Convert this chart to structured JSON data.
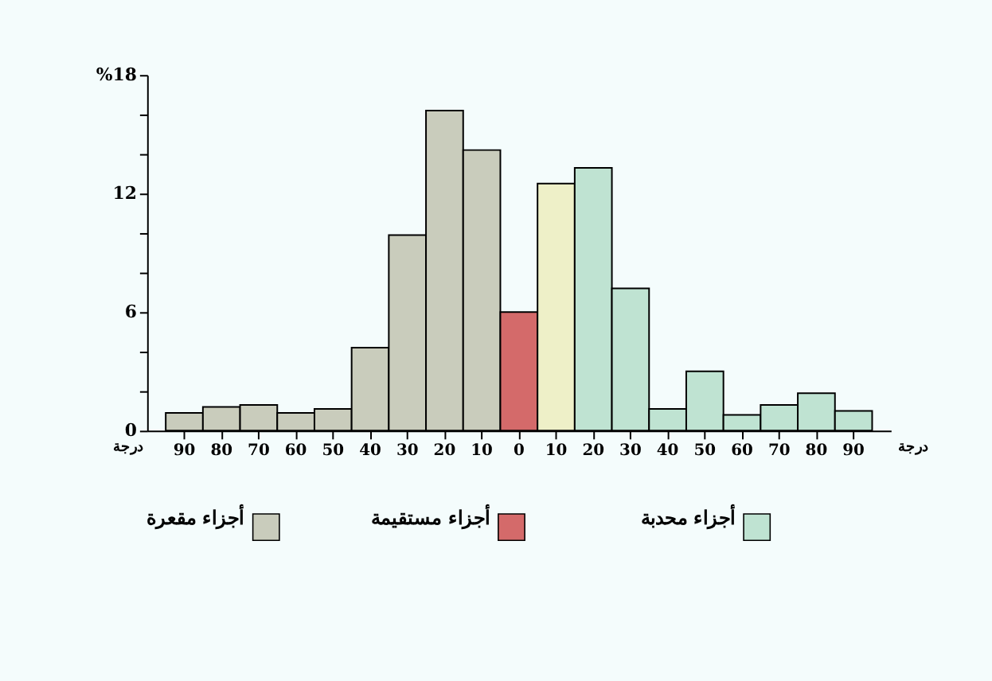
{
  "chart_data": {
    "type": "bar",
    "categories": [
      "90",
      "80",
      "70",
      "60",
      "50",
      "40",
      "30",
      "20",
      "10",
      "0",
      "10",
      "20",
      "30",
      "40",
      "50",
      "60",
      "70",
      "80",
      "90"
    ],
    "xlabel": "درجة",
    "annotations": [
      "درجة"
    ],
    "series": [
      {
        "name": "أجزاء مقعرة",
        "color": "#c9ccbc",
        "values": [
          0.9,
          1.2,
          1.3,
          0.9,
          1.1,
          4.2,
          9.9,
          16.2,
          14.2,
          null,
          null,
          null,
          null,
          null,
          null,
          null,
          null,
          null,
          null
        ]
      },
      {
        "name": "أجزاء مستقيمة",
        "color": "#d46a6a",
        "values": [
          null,
          null,
          null,
          null,
          null,
          null,
          null,
          null,
          null,
          6,
          null,
          null,
          null,
          null,
          null,
          null,
          null,
          null,
          null
        ]
      },
      {
        "name": "أجزاء محدبة",
        "color": "#bfe3d2",
        "colors": [
          null,
          null,
          null,
          null,
          null,
          null,
          null,
          null,
          null,
          null,
          "#eef0c8",
          "#bfe3d2",
          "#bfe3d2",
          "#bfe3d2",
          "#bfe3d2",
          "#bfe3d2",
          "#bfe3d2",
          "#bfe3d2",
          "#bfe3d2"
        ],
        "values": [
          null,
          null,
          null,
          null,
          null,
          null,
          null,
          null,
          null,
          null,
          12.5,
          13.3,
          7.2,
          1.1,
          3.0,
          0.8,
          1.3,
          1.9,
          1.0
        ]
      }
    ],
    "ylim": [
      0,
      18
    ],
    "yticks": [
      0,
      {
        "value": 2,
        "label": null
      },
      {
        "value": 4,
        "label": null
      },
      6,
      {
        "value": 8,
        "label": null
      },
      {
        "value": 10,
        "label": null
      },
      12,
      {
        "value": 14,
        "label": null
      },
      {
        "value": 16,
        "label": null
      },
      {
        "value": 18,
        "label": "%18"
      }
    ],
    "grid": false,
    "legend": "bottom"
  }
}
